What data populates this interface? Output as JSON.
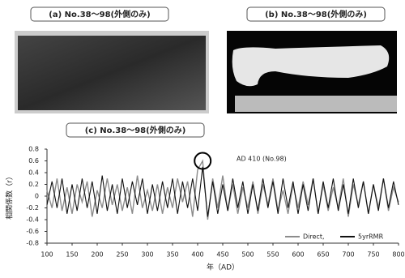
{
  "panels": {
    "a": {
      "label": "(a) No.38～98(外側のみ)"
    },
    "b": {
      "label": "(b) No.38～98(外側のみ)"
    }
  },
  "chart_data": {
    "type": "line",
    "title": "(c) No.38～98(外側のみ)",
    "x_label": "年（AD）",
    "y_label": "相関係数（r）",
    "x": [
      100,
      110,
      120,
      130,
      140,
      150,
      160,
      170,
      180,
      190,
      200,
      210,
      220,
      230,
      240,
      250,
      260,
      270,
      280,
      290,
      300,
      310,
      320,
      330,
      340,
      350,
      360,
      370,
      380,
      390,
      400,
      410,
      420,
      430,
      440,
      450,
      460,
      470,
      480,
      490,
      500,
      510,
      520,
      530,
      540,
      550,
      560,
      570,
      580,
      590,
      600,
      610,
      620,
      630,
      640,
      650,
      660,
      670,
      680,
      690,
      700,
      710,
      720,
      730,
      740,
      750,
      760,
      770,
      780,
      790,
      800
    ],
    "series": [
      {
        "name": "Direct,",
        "color": "#8c8c8c",
        "values": [
          0.1,
          -0.2,
          0.3,
          -0.25,
          0.15,
          -0.3,
          0.2,
          -0.1,
          0.25,
          -0.35,
          0.1,
          -0.2,
          0.3,
          -0.15,
          0.2,
          -0.25,
          0.15,
          -0.3,
          0.35,
          -0.2,
          0.1,
          -0.25,
          0.2,
          -0.3,
          0.15,
          -0.2,
          0.3,
          -0.1,
          0.25,
          -0.35,
          0.45,
          0.6,
          -0.4,
          0.3,
          -0.2,
          0.35,
          -0.25,
          0.2,
          -0.3,
          0.15,
          -0.2,
          0.25,
          -0.3,
          0.2,
          -0.15,
          0.3,
          -0.25,
          0.1,
          -0.3,
          0.2,
          -0.2,
          0.25,
          -0.15,
          0.3,
          -0.3,
          0.2,
          -0.25,
          0.15,
          -0.2,
          0.3,
          -0.35,
          0.2,
          -0.15,
          0.25,
          -0.3,
          0.2,
          -0.2,
          0.3,
          -0.25,
          0.15,
          -0.1
        ]
      },
      {
        "name": "5yrRMR",
        "color": "#111111",
        "values": [
          -0.15,
          0.25,
          -0.2,
          0.3,
          -0.3,
          0.2,
          -0.25,
          0.3,
          -0.2,
          0.25,
          -0.3,
          0.35,
          -0.25,
          0.2,
          -0.3,
          0.3,
          -0.2,
          0.25,
          -0.15,
          0.3,
          -0.3,
          0.2,
          -0.25,
          0.25,
          -0.2,
          0.3,
          -0.3,
          0.25,
          -0.2,
          0.3,
          -0.25,
          0.5,
          -0.35,
          0.25,
          -0.3,
          0.2,
          -0.25,
          0.3,
          -0.2,
          0.25,
          -0.3,
          0.2,
          -0.25,
          0.3,
          -0.2,
          0.25,
          -0.3,
          0.3,
          -0.2,
          0.25,
          -0.3,
          0.2,
          -0.25,
          0.3,
          -0.3,
          0.25,
          -0.2,
          0.3,
          -0.25,
          0.2,
          -0.3,
          0.3,
          -0.2,
          0.25,
          -0.3,
          0.2,
          -0.25,
          0.3,
          -0.2,
          0.25,
          -0.15
        ]
      }
    ],
    "annotation": {
      "text": "AD 410 (No.98)",
      "x": 410,
      "y": 0.6
    },
    "xlim": [
      100,
      800
    ],
    "xticks": [
      100,
      150,
      200,
      250,
      300,
      350,
      400,
      450,
      500,
      550,
      600,
      650,
      700,
      750,
      800
    ],
    "ylim": [
      -0.8,
      0.8
    ],
    "yticks": [
      0.8,
      0.6,
      0.4,
      0.2,
      0,
      -0.2,
      -0.4,
      -0.6,
      -0.8
    ],
    "legend": "lower-right"
  }
}
